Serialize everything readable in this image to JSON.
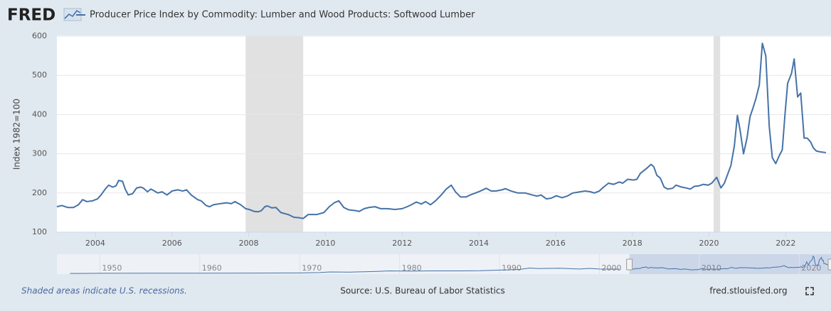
{
  "chart_data": {
    "type": "line",
    "logo": "FRED",
    "y_label": "Index 1982=100",
    "footnote": "Shaded areas indicate U.S. recessions.",
    "source": "Source: U.S. Bureau of Labor Statistics",
    "site": "fred.stlouisfed.org",
    "grid": true,
    "xlim": [
      2003,
      2023.18
    ],
    "xticks": [
      2004,
      2006,
      2008,
      2010,
      2012,
      2014,
      2016,
      2018,
      2020,
      2022
    ],
    "ylim": [
      100,
      600
    ],
    "yticks": [
      100,
      200,
      300,
      400,
      500,
      600
    ],
    "recessions": [
      [
        2007.92,
        2009.42
      ],
      [
        2020.12,
        2020.29
      ]
    ],
    "series": [
      {
        "name": "Producer Price Index by Commodity: Lumber and Wood Products: Softwood Lumber",
        "color": "#4572a7",
        "x": [
          2003.0,
          2003.13,
          2003.28,
          2003.43,
          2003.56,
          2003.67,
          2003.78,
          2003.93,
          2004.06,
          2004.15,
          2004.26,
          2004.35,
          2004.45,
          2004.54,
          2004.61,
          2004.71,
          2004.78,
          2004.86,
          2004.97,
          2005.08,
          2005.19,
          2005.26,
          2005.36,
          2005.45,
          2005.63,
          2005.74,
          2005.87,
          2006.0,
          2006.15,
          2006.28,
          2006.38,
          2006.5,
          2006.67,
          2006.76,
          2006.89,
          2006.98,
          2007.08,
          2007.27,
          2007.42,
          2007.55,
          2007.64,
          2007.79,
          2007.92,
          2008.01,
          2008.14,
          2008.24,
          2008.33,
          2008.42,
          2008.49,
          2008.6,
          2008.71,
          2008.84,
          2009.03,
          2009.18,
          2009.31,
          2009.42,
          2009.55,
          2009.77,
          2009.96,
          2010.1,
          2010.23,
          2010.35,
          2010.48,
          2010.61,
          2010.79,
          2010.88,
          2011.01,
          2011.13,
          2011.29,
          2011.44,
          2011.62,
          2011.81,
          2012.0,
          2012.13,
          2012.24,
          2012.37,
          2012.5,
          2012.61,
          2012.74,
          2012.87,
          2013.02,
          2013.15,
          2013.28,
          2013.39,
          2013.52,
          2013.67,
          2013.8,
          2013.91,
          2014.04,
          2014.19,
          2014.32,
          2014.45,
          2014.6,
          2014.69,
          2014.84,
          2015.02,
          2015.21,
          2015.39,
          2015.52,
          2015.62,
          2015.76,
          2015.89,
          2016.02,
          2016.17,
          2016.3,
          2016.45,
          2016.64,
          2016.77,
          2016.91,
          2017.01,
          2017.14,
          2017.25,
          2017.38,
          2017.51,
          2017.66,
          2017.75,
          2017.88,
          2018.03,
          2018.12,
          2018.21,
          2018.3,
          2018.4,
          2018.49,
          2018.56,
          2018.64,
          2018.73,
          2018.83,
          2018.92,
          2019.05,
          2019.14,
          2019.29,
          2019.44,
          2019.51,
          2019.62,
          2019.73,
          2019.85,
          2019.98,
          2020.07,
          2020.2,
          2020.31,
          2020.4,
          2020.57,
          2020.66,
          2020.74,
          2020.81,
          2020.9,
          2020.99,
          2021.07,
          2021.14,
          2021.22,
          2021.31,
          2021.39,
          2021.48,
          2021.57,
          2021.65,
          2021.74,
          2021.83,
          2021.91,
          2021.98,
          2022.05,
          2022.15,
          2022.22,
          2022.31,
          2022.39,
          2022.48,
          2022.56,
          2022.65,
          2022.72,
          2022.8,
          2022.9,
          2023.05
        ],
        "values": [
          165,
          168,
          163,
          163,
          170,
          183,
          178,
          180,
          185,
          195,
          210,
          220,
          215,
          218,
          232,
          230,
          210,
          195,
          198,
          213,
          215,
          212,
          203,
          210,
          200,
          203,
          195,
          205,
          208,
          205,
          208,
          195,
          183,
          180,
          168,
          165,
          170,
          173,
          175,
          173,
          178,
          170,
          160,
          158,
          153,
          152,
          155,
          165,
          167,
          162,
          163,
          150,
          145,
          138,
          137,
          135,
          145,
          145,
          150,
          165,
          175,
          180,
          163,
          157,
          155,
          153,
          160,
          163,
          165,
          160,
          160,
          158,
          160,
          165,
          170,
          177,
          172,
          178,
          170,
          180,
          195,
          210,
          220,
          203,
          190,
          190,
          196,
          200,
          205,
          212,
          205,
          205,
          208,
          211,
          205,
          200,
          200,
          195,
          192,
          195,
          185,
          187,
          193,
          188,
          192,
          200,
          203,
          205,
          203,
          200,
          205,
          215,
          225,
          222,
          228,
          225,
          235,
          233,
          235,
          250,
          257,
          265,
          273,
          267,
          245,
          238,
          215,
          210,
          212,
          220,
          215,
          212,
          210,
          217,
          218,
          222,
          220,
          225,
          240,
          213,
          225,
          270,
          320,
          398,
          360,
          300,
          340,
          395,
          415,
          440,
          475,
          582,
          550,
          370,
          290,
          275,
          295,
          310,
          400,
          480,
          505,
          542,
          445,
          455,
          340,
          340,
          330,
          315,
          307,
          305,
          303
        ]
      }
    ],
    "navigator": {
      "xlim": [
        1945.7,
        2023.18
      ],
      "ylim": [
        0,
        600
      ],
      "xticks": [
        1950,
        1960,
        1970,
        1980,
        1990,
        2000,
        2010,
        2020
      ],
      "x": [
        1947,
        1950,
        1955,
        1960,
        1965,
        1970,
        1972,
        1973,
        1975,
        1978,
        1979,
        1981,
        1983,
        1986,
        1988,
        1992,
        1993,
        1994,
        1996,
        1998,
        1999,
        2000,
        2002
      ],
      "values": [
        20,
        25,
        28,
        30,
        32,
        38,
        50,
        70,
        62,
        90,
        105,
        95,
        105,
        105,
        110,
        150,
        195,
        180,
        190,
        165,
        185,
        165,
        160
      ]
    }
  }
}
